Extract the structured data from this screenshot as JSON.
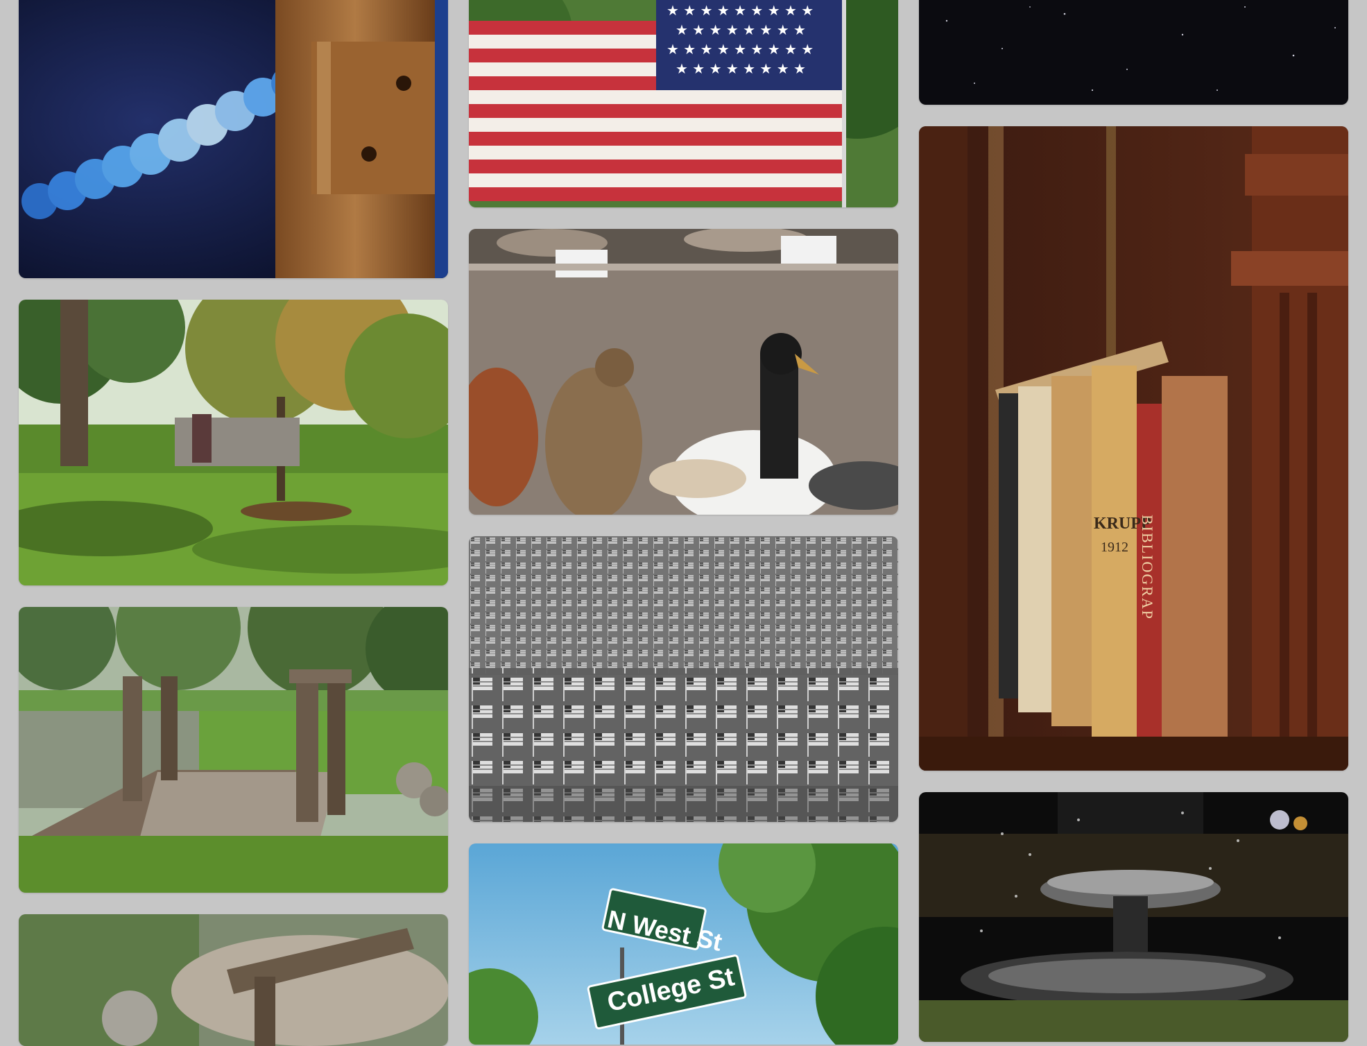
{
  "gallery": {
    "tiles": [
      {
        "id": "t1",
        "subject": "blue bokeh lights behind wooden post"
      },
      {
        "id": "t2",
        "subject": "park with trees and a bench"
      },
      {
        "id": "t3",
        "subject": "rustic wooden footbridge by a pond"
      },
      {
        "id": "t4",
        "subject": "blurred rustic railing and rocks"
      },
      {
        "id": "t5",
        "subject": "american flag waving"
      },
      {
        "id": "t6",
        "subject": "taxidermy birds in display case"
      },
      {
        "id": "t7",
        "subject": "field of small flags in black and white"
      },
      {
        "id": "t8",
        "subject": "street signs at an intersection"
      },
      {
        "id": "t9",
        "subject": "starry night sky"
      },
      {
        "id": "t10",
        "subject": "old books on a wooden shelf"
      },
      {
        "id": "t11",
        "subject": "fountain at night"
      }
    ]
  },
  "sign_text": {
    "upper": "N West St",
    "lower": "College St"
  },
  "book_text": {
    "spine_a": "KRUPP",
    "spine_a_years": "1912",
    "spine_b": "BIBLIOGRAP"
  },
  "colors": {
    "page_background": "#c6c6c6",
    "sign_green": "#1f5a3a"
  }
}
